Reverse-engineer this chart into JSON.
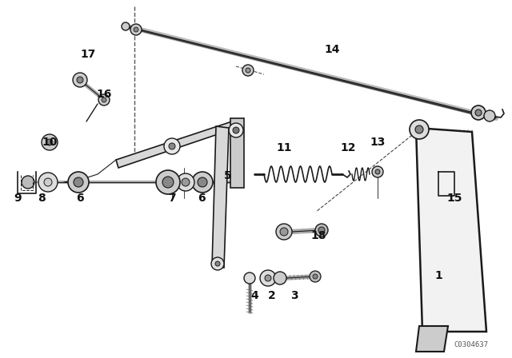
{
  "background": "#ffffff",
  "watermark": "C0304637",
  "lc": "#1a1a1a",
  "labels": [
    [
      "17",
      110,
      68
    ],
    [
      "16",
      130,
      118
    ],
    [
      "10",
      62,
      178
    ],
    [
      "9",
      22,
      248
    ],
    [
      "8",
      52,
      248
    ],
    [
      "6",
      100,
      248
    ],
    [
      "7",
      215,
      248
    ],
    [
      "6",
      252,
      248
    ],
    [
      "5",
      285,
      220
    ],
    [
      "11",
      355,
      185
    ],
    [
      "12",
      435,
      185
    ],
    [
      "13",
      472,
      178
    ],
    [
      "14",
      415,
      62
    ],
    [
      "15",
      568,
      248
    ],
    [
      "18",
      398,
      295
    ],
    [
      "4",
      318,
      370
    ],
    [
      "2",
      340,
      370
    ],
    [
      "3",
      368,
      370
    ],
    [
      "1",
      548,
      345
    ]
  ]
}
